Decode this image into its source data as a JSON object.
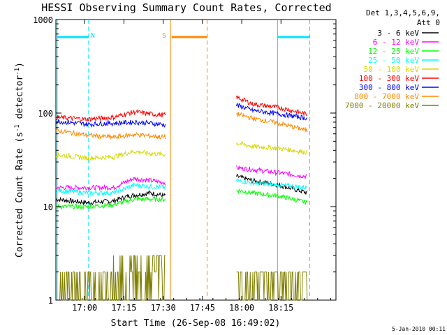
{
  "chart_data": {
    "type": "line",
    "title": "HESSI Observing Summary Count Rates, Corrected",
    "xlabel": "Start Time (26-Sep-08 16:49:02)",
    "ylabel": "Corrected Count Rate (s⁻¹ detector⁻¹)",
    "ylabel_parts": [
      "Corrected Count Rate (s",
      "-1",
      " detector",
      "-1",
      ")"
    ],
    "yscale": "log",
    "ylim": [
      1,
      1000
    ],
    "xlim_min": [
      0,
      107
    ],
    "x_units": "minutes after 16:49:02",
    "xticks": [
      {
        "at": 11,
        "label": "17:00"
      },
      {
        "at": 26,
        "label": "17:15"
      },
      {
        "at": 41,
        "label": "17:30"
      },
      {
        "at": 56,
        "label": "17:45"
      },
      {
        "at": 71,
        "label": "18:00"
      },
      {
        "at": 86,
        "label": "18:15"
      }
    ],
    "yticks": [
      {
        "value": 1,
        "label": "1"
      },
      {
        "value": 10,
        "label": "10"
      },
      {
        "value": 100,
        "label": "100"
      },
      {
        "value": 1000,
        "label": "1000"
      }
    ],
    "legend_header": [
      "Det 1,3,4,5,6,9,",
      "Att 0"
    ],
    "legend_position": "right",
    "series": [
      {
        "name": "3 - 6 keV",
        "color": "#000000",
        "segments": [
          {
            "x": [
              0,
              12,
              22,
              28,
              36,
              41.8
            ],
            "y": [
              12,
              11,
              11.5,
              13,
              14,
              13
            ]
          },
          {
            "x": [
              69,
              75,
              85,
              96
            ],
            "y": [
              21,
              19,
              17,
              14
            ]
          }
        ]
      },
      {
        "name": "6 - 12 keV",
        "color": "#ff00ff",
        "segments": [
          {
            "x": [
              0,
              12,
              22,
              30,
              36,
              41.8
            ],
            "y": [
              16,
              16,
              16,
              20,
              19,
              18
            ]
          },
          {
            "x": [
              69,
              75,
              85,
              96
            ],
            "y": [
              26,
              25,
              23,
              21
            ]
          }
        ]
      },
      {
        "name": "12 - 25 keV",
        "color": "#00ff00",
        "segments": [
          {
            "x": [
              0,
              12,
              22,
              30,
              36,
              41.8
            ],
            "y": [
              10,
              10,
              10.5,
              12,
              12,
              12
            ]
          },
          {
            "x": [
              69,
              75,
              85,
              96
            ],
            "y": [
              15,
              14,
              13,
              11
            ]
          }
        ]
      },
      {
        "name": "25 - 50 keV",
        "color": "#00ffff",
        "segments": [
          {
            "x": [
              0,
              12,
              22,
              30,
              36,
              41.8
            ],
            "y": [
              15,
              14,
              14,
              17,
              16.5,
              16
            ]
          },
          {
            "x": [
              69,
              75,
              85,
              96
            ],
            "y": [
              19,
              18,
              17,
              16
            ]
          }
        ]
      },
      {
        "name": "50 - 100 keV",
        "color": "#d8d800",
        "segments": [
          {
            "x": [
              0,
              12,
              22,
              30,
              36,
              41.8
            ],
            "y": [
              36,
              33,
              34,
              39,
              37,
              36
            ]
          },
          {
            "x": [
              69,
              75,
              85,
              96
            ],
            "y": [
              48,
              44,
              42,
              38
            ]
          }
        ]
      },
      {
        "name": "100 - 300 keV",
        "color": "#ff0000",
        "segments": [
          {
            "x": [
              0,
              12,
              22,
              30,
              36,
              41.8
            ],
            "y": [
              90,
              86,
              90,
              103,
              98,
              95
            ]
          },
          {
            "x": [
              69,
              75,
              85,
              96
            ],
            "y": [
              148,
              125,
              115,
              97
            ]
          }
        ]
      },
      {
        "name": "300 - 800 keV",
        "color": "#0000ff",
        "segments": [
          {
            "x": [
              0,
              12,
              22,
              30,
              36,
              41.8
            ],
            "y": [
              82,
              76,
              78,
              80,
              78,
              75
            ]
          },
          {
            "x": [
              69,
              75,
              85,
              96
            ],
            "y": [
              122,
              107,
              98,
              88
            ]
          }
        ]
      },
      {
        "name": "800 - 7000 keV",
        "color": "#ff8800",
        "segments": [
          {
            "x": [
              0,
              12,
              22,
              30,
              36,
              41.8
            ],
            "y": [
              65,
              58,
              55,
              59,
              57,
              55
            ]
          },
          {
            "x": [
              69,
              75,
              85,
              96
            ],
            "y": [
              98,
              88,
              78,
              65
            ]
          }
        ]
      },
      {
        "name": "7000 - 20000 keV",
        "color": "#808000",
        "segments": [
          {
            "x": [
              0,
              12,
              20,
              30,
              36,
              41.8
            ],
            "y": [
              1.5,
              1.5,
              2,
              2.5,
              2.5,
              3
            ]
          },
          {
            "x": [
              69,
              75,
              85,
              96
            ],
            "y": [
              2,
              2,
              2,
              1.5
            ]
          }
        ]
      }
    ],
    "flags": [
      {
        "label": "N",
        "color": "#00e5ff",
        "level": 650,
        "bars": [
          [
            0.5,
            12.5
          ],
          [
            84.7,
            97
          ]
        ],
        "dashed_x": [
          12.5,
          97
        ],
        "solid_x": [
          0.5,
          84.7
        ]
      },
      {
        "label": "S",
        "color": "#ff8800",
        "level": 650,
        "bars": [
          [
            44.3,
            57.8
          ]
        ],
        "dashed_x": [
          57.8
        ],
        "solid_x": [
          43.8
        ]
      }
    ],
    "footer_date": "5-Jan-2010 00:11"
  }
}
